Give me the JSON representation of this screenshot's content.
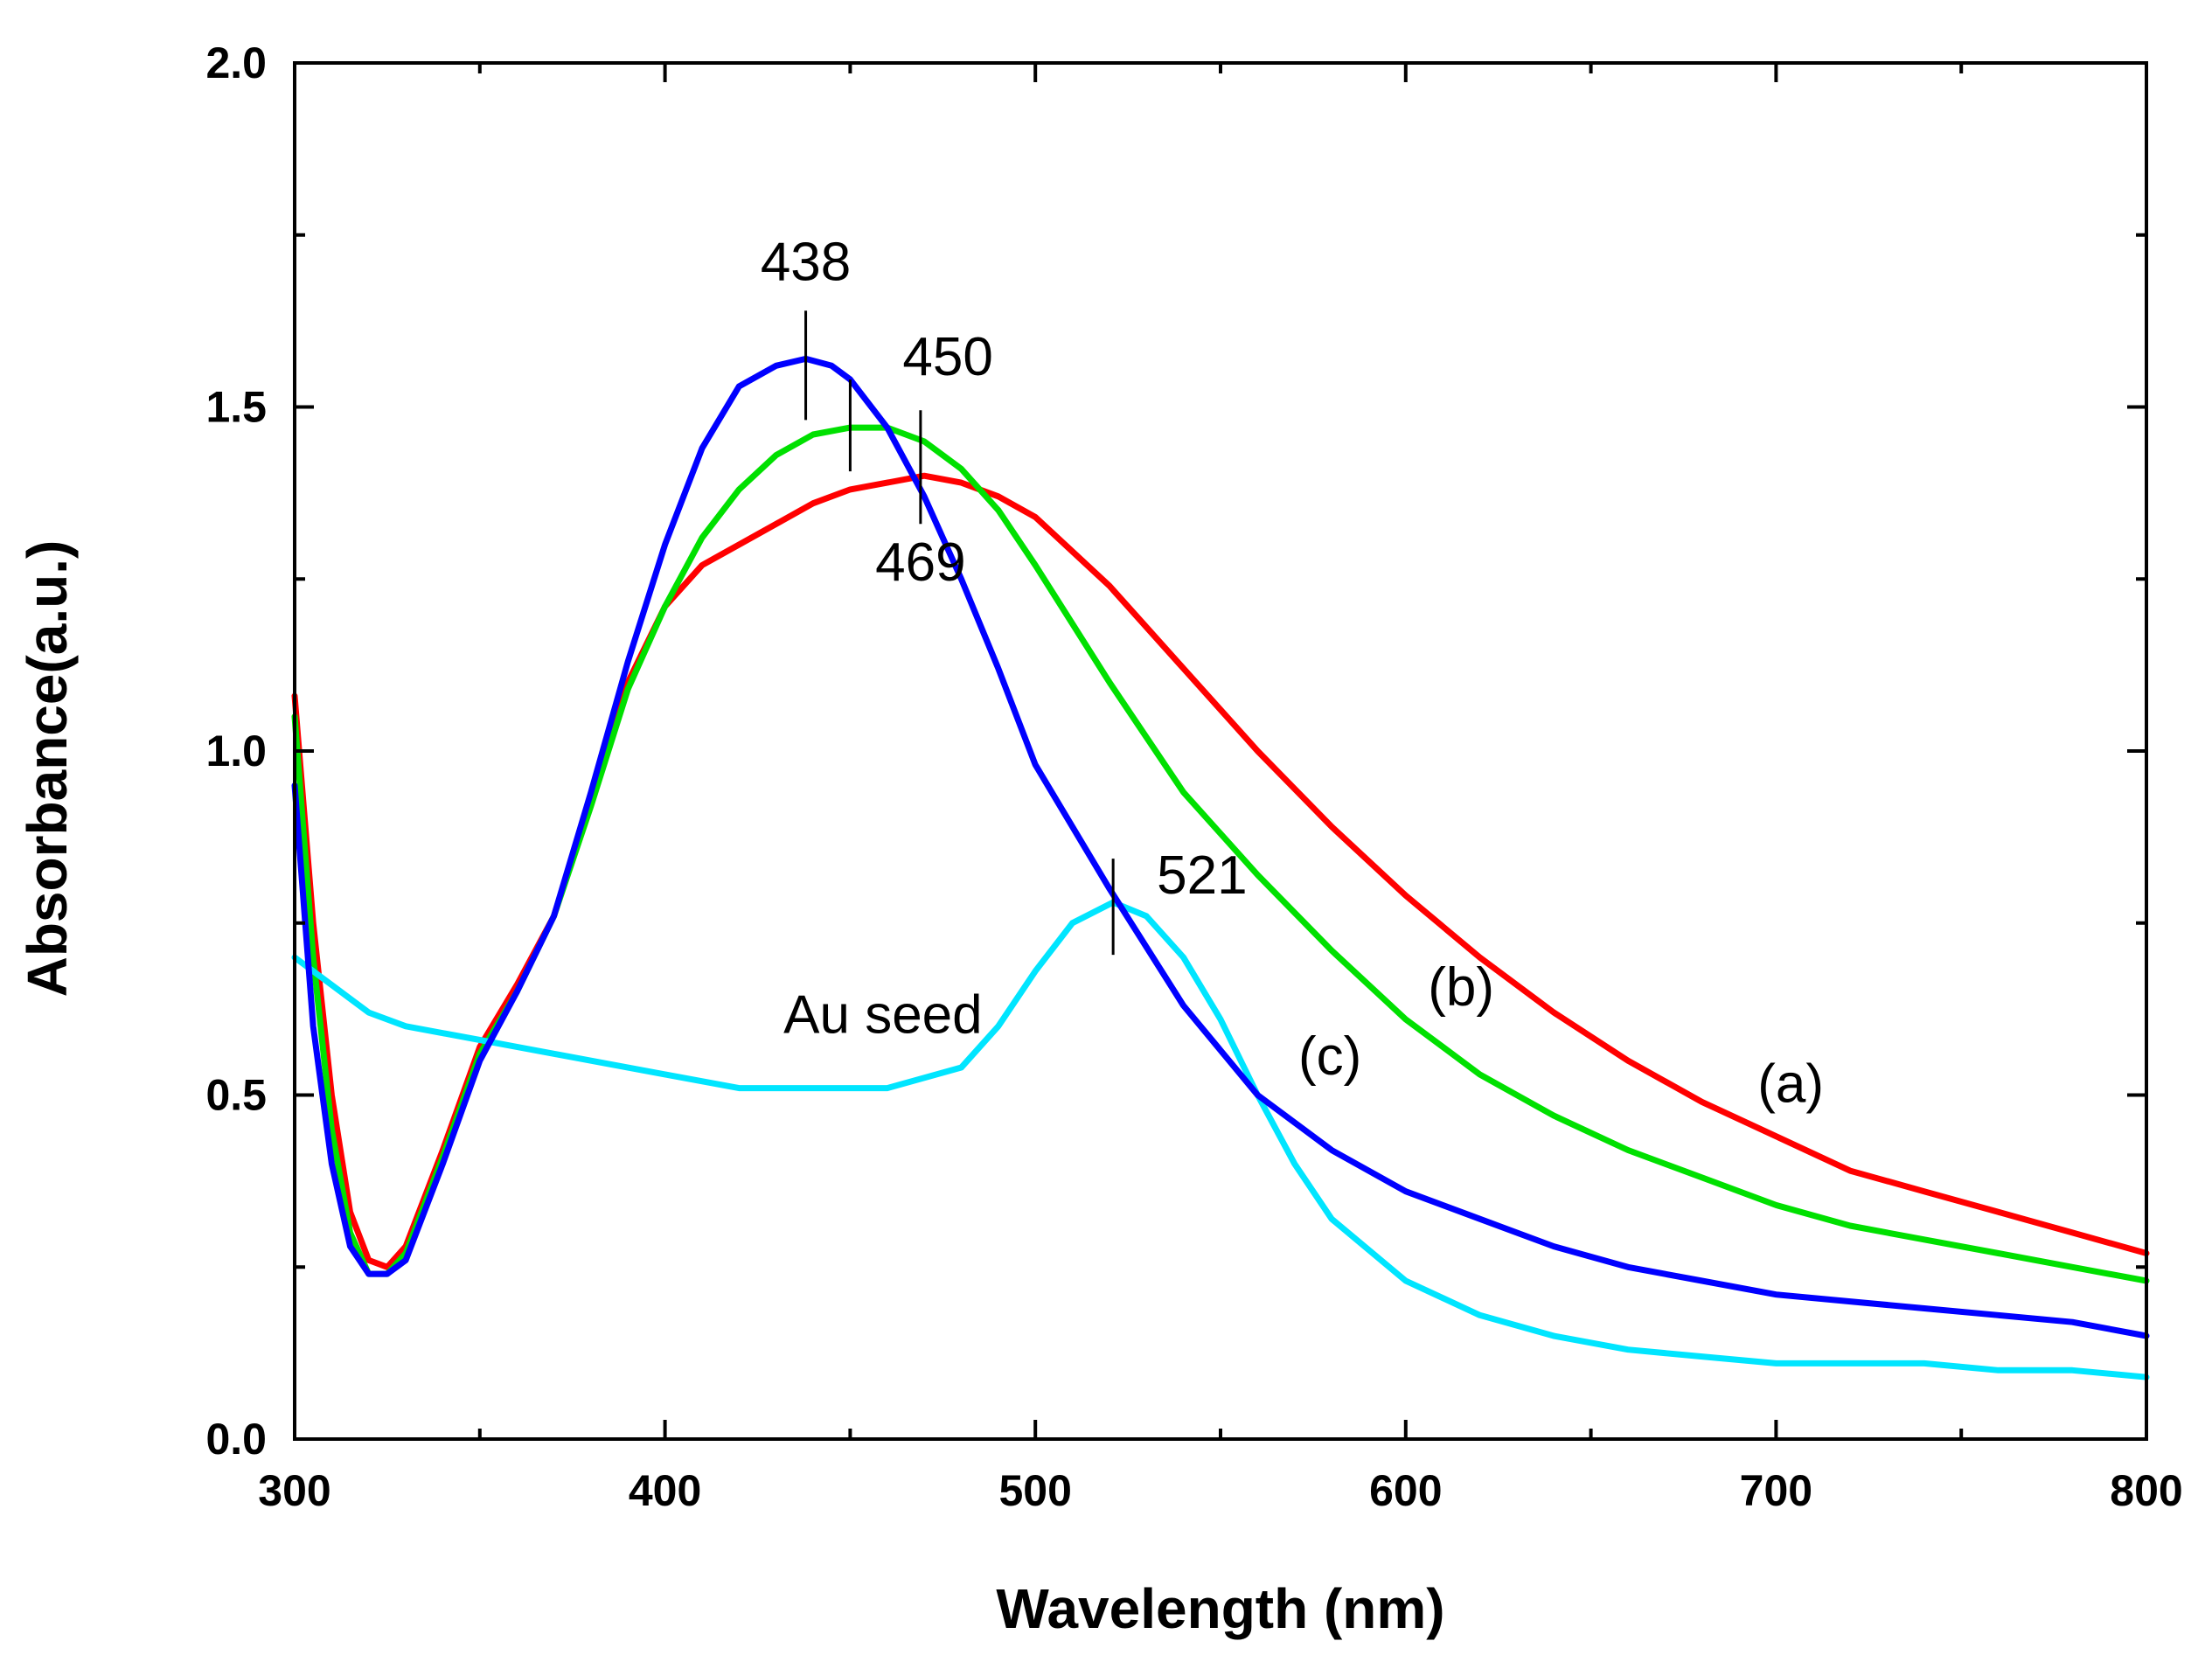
{
  "chart_data": {
    "type": "line",
    "title": "",
    "xlabel": "Wavelength (nm)",
    "ylabel": "Absorbance(a.u.)",
    "xlim": [
      300,
      800
    ],
    "ylim": [
      0.0,
      2.0
    ],
    "xticks": [
      300,
      400,
      500,
      600,
      700,
      800
    ],
    "xtick_labels": [
      "300",
      "400",
      "500",
      "600",
      "700",
      "800"
    ],
    "yticks": [
      0.0,
      0.5,
      1.0,
      1.5,
      2.0
    ],
    "ytick_labels": [
      "0.0",
      "0.5",
      "1.0",
      "1.5",
      "2.0"
    ],
    "grid": false,
    "series": [
      {
        "name": "(a)",
        "color": "#ff0000",
        "x": [
          300,
          305,
          310,
          315,
          320,
          325,
          330,
          340,
          350,
          360,
          370,
          380,
          390,
          400,
          410,
          420,
          430,
          440,
          450,
          460,
          470,
          480,
          490,
          500,
          520,
          540,
          560,
          580,
          600,
          620,
          640,
          660,
          680,
          700,
          720,
          740,
          760,
          780,
          800
        ],
        "y": [
          1.08,
          0.75,
          0.5,
          0.33,
          0.26,
          0.25,
          0.28,
          0.42,
          0.57,
          0.66,
          0.76,
          0.93,
          1.1,
          1.21,
          1.27,
          1.3,
          1.33,
          1.36,
          1.38,
          1.39,
          1.4,
          1.39,
          1.37,
          1.34,
          1.24,
          1.12,
          1.0,
          0.89,
          0.79,
          0.7,
          0.62,
          0.55,
          0.49,
          0.44,
          0.39,
          0.36,
          0.33,
          0.3,
          0.27
        ]
      },
      {
        "name": "(b)",
        "color": "#00e000",
        "x": [
          300,
          305,
          310,
          315,
          320,
          325,
          330,
          340,
          350,
          360,
          370,
          380,
          390,
          400,
          410,
          420,
          430,
          440,
          450,
          460,
          470,
          480,
          490,
          500,
          520,
          540,
          560,
          580,
          600,
          620,
          640,
          660,
          680,
          700,
          720,
          740,
          760,
          780,
          800
        ],
        "y": [
          1.05,
          0.7,
          0.45,
          0.3,
          0.24,
          0.24,
          0.27,
          0.41,
          0.56,
          0.65,
          0.76,
          0.92,
          1.09,
          1.21,
          1.31,
          1.38,
          1.43,
          1.46,
          1.47,
          1.47,
          1.45,
          1.41,
          1.35,
          1.27,
          1.1,
          0.94,
          0.82,
          0.71,
          0.61,
          0.53,
          0.47,
          0.42,
          0.38,
          0.34,
          0.31,
          0.29,
          0.27,
          0.25,
          0.23
        ]
      },
      {
        "name": "(c)",
        "color": "#0000ff",
        "x": [
          300,
          305,
          310,
          315,
          320,
          325,
          330,
          340,
          350,
          360,
          370,
          380,
          390,
          400,
          410,
          420,
          430,
          438,
          445,
          450,
          460,
          470,
          480,
          490,
          500,
          520,
          540,
          560,
          580,
          600,
          620,
          640,
          660,
          680,
          700,
          720,
          740,
          760,
          780,
          800
        ],
        "y": [
          0.95,
          0.6,
          0.4,
          0.28,
          0.24,
          0.24,
          0.26,
          0.4,
          0.55,
          0.65,
          0.76,
          0.94,
          1.13,
          1.3,
          1.44,
          1.53,
          1.56,
          1.57,
          1.56,
          1.54,
          1.47,
          1.37,
          1.25,
          1.12,
          0.98,
          0.8,
          0.63,
          0.5,
          0.42,
          0.36,
          0.32,
          0.28,
          0.25,
          0.23,
          0.21,
          0.2,
          0.19,
          0.18,
          0.17,
          0.15
        ]
      },
      {
        "name": "Au seed",
        "color": "#00e5ff",
        "x": [
          300,
          310,
          320,
          330,
          340,
          350,
          360,
          370,
          380,
          400,
          420,
          440,
          460,
          480,
          490,
          500,
          510,
          521,
          530,
          540,
          550,
          560,
          570,
          580,
          600,
          620,
          640,
          660,
          680,
          700,
          720,
          740,
          760,
          780,
          800
        ],
        "y": [
          0.7,
          0.66,
          0.62,
          0.6,
          0.59,
          0.58,
          0.57,
          0.56,
          0.55,
          0.53,
          0.51,
          0.51,
          0.51,
          0.54,
          0.6,
          0.68,
          0.75,
          0.78,
          0.76,
          0.7,
          0.61,
          0.5,
          0.4,
          0.32,
          0.23,
          0.18,
          0.15,
          0.13,
          0.12,
          0.11,
          0.11,
          0.11,
          0.1,
          0.1,
          0.09
        ]
      }
    ],
    "peak_markers": [
      {
        "x": 438,
        "y": 1.57,
        "label": "438"
      },
      {
        "x": 450,
        "y": 1.47,
        "label": "450"
      },
      {
        "x": 469,
        "y": 1.4,
        "label": "469"
      },
      {
        "x": 521,
        "y": 0.78,
        "label": "521"
      }
    ],
    "series_labels": [
      {
        "text": "(a)",
        "x": 695,
        "y": 0.49
      },
      {
        "text": "(b)",
        "x": 606,
        "y": 0.63
      },
      {
        "text": "(c)",
        "x": 571,
        "y": 0.53
      },
      {
        "text": "Au seed",
        "x": 432,
        "y": 0.59
      }
    ]
  }
}
